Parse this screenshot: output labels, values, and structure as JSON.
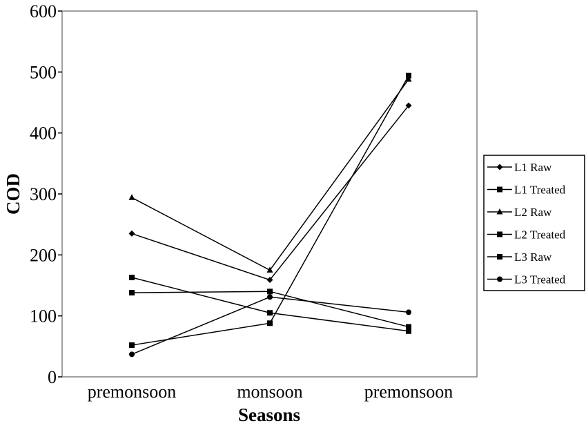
{
  "chart_data": {
    "type": "line",
    "title": "",
    "xlabel": "Seasons",
    "ylabel": "COD",
    "categories": [
      "premonsoon",
      "monsoon",
      "premonsoon"
    ],
    "ylim": [
      0,
      600
    ],
    "yticks": [
      0,
      100,
      200,
      300,
      400,
      500,
      600
    ],
    "grid": false,
    "legend_position": "right",
    "series": [
      {
        "name": "L1 Raw",
        "marker": "diamond",
        "values": [
          235,
          159,
          445
        ]
      },
      {
        "name": "L1 Treated",
        "marker": "square",
        "values": [
          163,
          105,
          75
        ]
      },
      {
        "name": "L2 Raw",
        "marker": "triangle",
        "values": [
          294,
          175,
          488
        ]
      },
      {
        "name": "L2 Treated",
        "marker": "square",
        "values": [
          138,
          140,
          82
        ]
      },
      {
        "name": "L3 Raw",
        "marker": "square",
        "values": [
          52,
          88,
          494
        ]
      },
      {
        "name": "L3 Treated",
        "marker": "circle",
        "values": [
          37,
          131,
          106
        ]
      }
    ]
  }
}
